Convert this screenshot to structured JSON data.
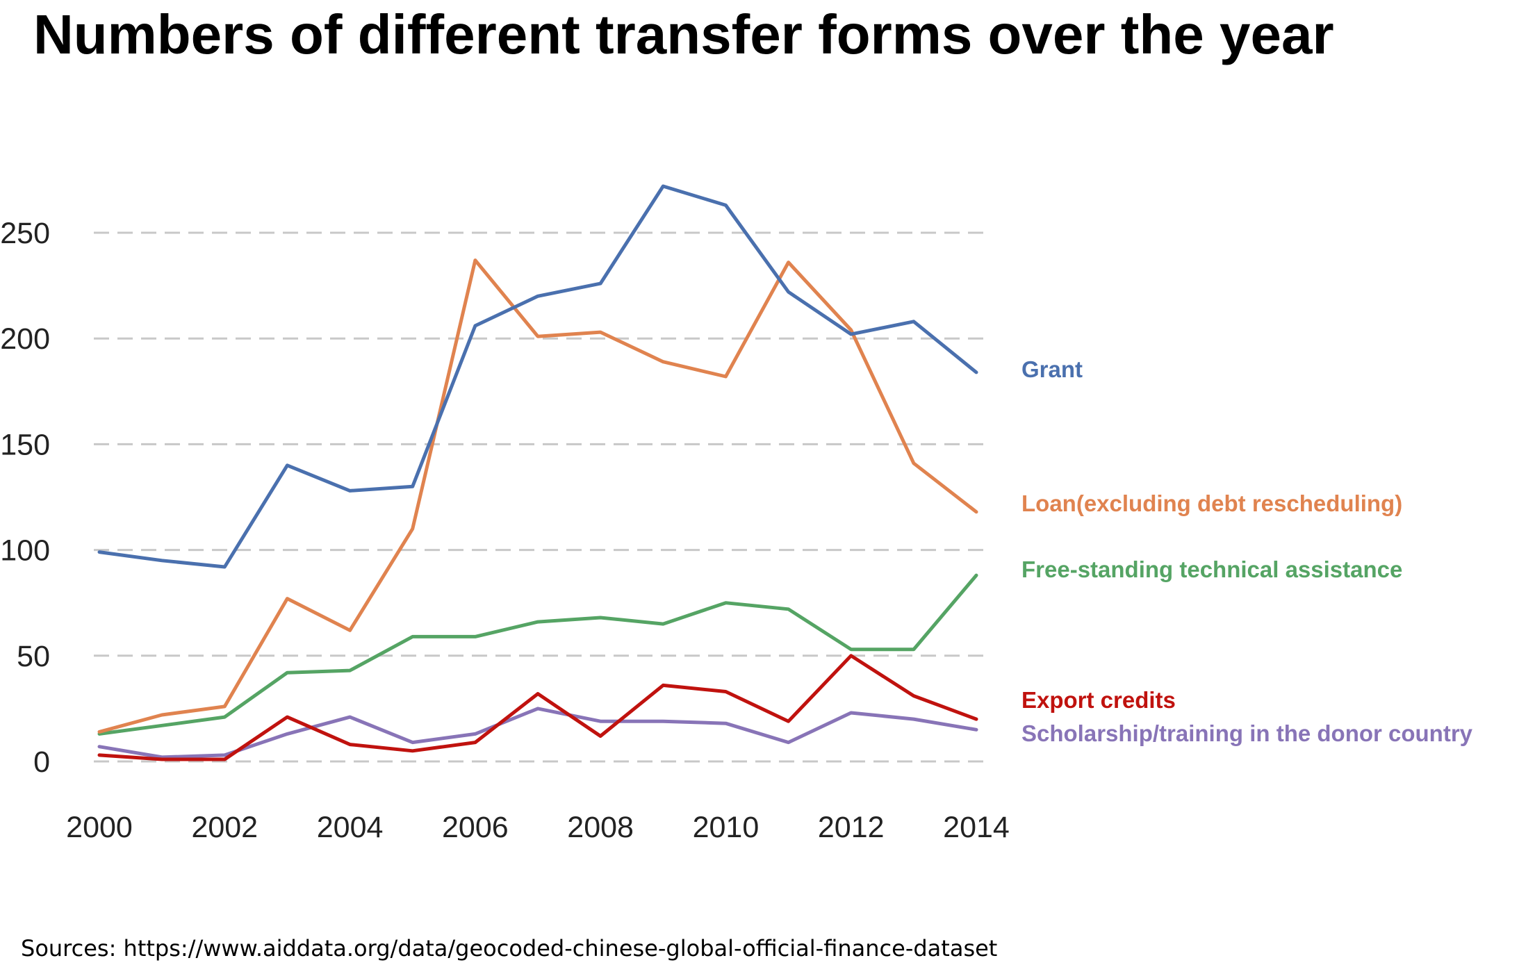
{
  "chart_data": {
    "type": "line",
    "title": "Numbers of different transfer forms over the year",
    "xlabel": "",
    "ylabel": "",
    "x": [
      2000,
      2001,
      2002,
      2003,
      2004,
      2005,
      2006,
      2007,
      2008,
      2009,
      2010,
      2011,
      2012,
      2013,
      2014
    ],
    "xticks": [
      "2000",
      "2002",
      "2004",
      "2006",
      "2008",
      "2010",
      "2012",
      "2014"
    ],
    "yticks": [
      "0",
      "50",
      "100",
      "150",
      "200",
      "250"
    ],
    "ylim": [
      0,
      250
    ],
    "grid": "horizontal dashed",
    "legend": "direct labels at right end of lines",
    "series": [
      {
        "name": "Grant",
        "color": "#4a70ae",
        "values": [
          99,
          95,
          92,
          140,
          128,
          130,
          206,
          220,
          226,
          272,
          263,
          222,
          202,
          208,
          184
        ]
      },
      {
        "name": "Loan(excluding debt rescheduling)",
        "color": "#e0834f",
        "values": [
          14,
          22,
          26,
          77,
          62,
          110,
          237,
          201,
          203,
          189,
          182,
          236,
          204,
          141,
          118
        ]
      },
      {
        "name": "Free-standing technical assistance",
        "color": "#55a464",
        "values": [
          13,
          17,
          21,
          42,
          43,
          59,
          59,
          66,
          68,
          65,
          75,
          72,
          53,
          53,
          88
        ]
      },
      {
        "name": "Export credits",
        "color": "#c0120e",
        "values": [
          3,
          1,
          1,
          21,
          8,
          5,
          9,
          32,
          12,
          36,
          33,
          19,
          50,
          31,
          20
        ]
      },
      {
        "name": "Scholarship/training in the donor country",
        "color": "#8874b7",
        "values": [
          7,
          2,
          3,
          13,
          21,
          9,
          13,
          25,
          19,
          19,
          18,
          9,
          23,
          20,
          15
        ]
      }
    ],
    "source": "Sources: https://www.aiddata.org/data/geocoded-chinese-global-official-finance-dataset"
  }
}
